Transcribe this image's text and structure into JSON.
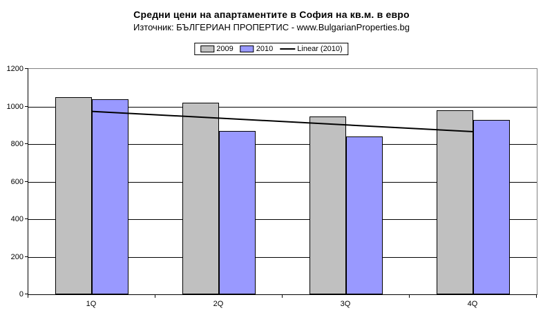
{
  "chart_data": {
    "type": "bar",
    "title": "Средни цени на апартаментите в София на кв.м. в евро",
    "subtitle": "Източник: БЪЛГЕРИАН ПРОПЕРТИС - www.BulgarianProperties.bg",
    "categories": [
      "1Q",
      "2Q",
      "3Q",
      "4Q"
    ],
    "series": [
      {
        "name": "2009",
        "color": "#C0C0C0",
        "values": [
          1050,
          1020,
          945,
          980
        ]
      },
      {
        "name": "2010",
        "color": "#9999FF",
        "values": [
          1040,
          870,
          840,
          930
        ]
      }
    ],
    "trendline": {
      "name": "Linear (2010)",
      "color": "#000000",
      "start_value": 974,
      "end_value": 866
    },
    "xlabel": "",
    "ylabel": "",
    "ylim": [
      0,
      1200
    ],
    "ytick_step": 200,
    "ytick_labels": [
      "0",
      "200",
      "400",
      "600",
      "800",
      "1000",
      "1200"
    ],
    "grid": true,
    "legend_position": "top-center",
    "plot_border_color": "#808080",
    "gridline_color": "#000000",
    "background_color": "#FFFFFF"
  }
}
